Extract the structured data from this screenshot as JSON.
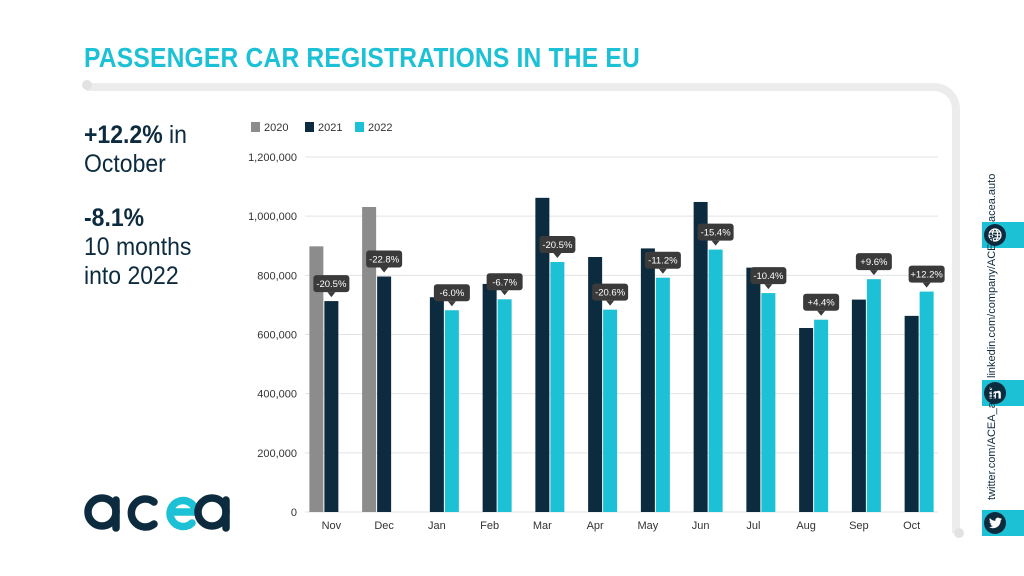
{
  "title": "PASSENGER CAR REGISTRATIONS IN THE EU",
  "kpis": {
    "stat1_value": "+12.2%",
    "stat1_rest": " in",
    "stat1_line2": "October",
    "stat2_value": "-8.1%",
    "stat2_line2": "10 months",
    "stat2_line3": "into 2022"
  },
  "brand": "acea",
  "social": {
    "website": "acea.auto",
    "linkedin": "linkedin.com/company/ACEA/",
    "twitter": "twitter.com/ACEA_auto"
  },
  "colors": {
    "accent": "#1cc1d6",
    "navy": "#0d2b3e",
    "gray2020": "#8c8c8c",
    "label_bg": "#3a3a3a"
  },
  "chart_data": {
    "type": "bar",
    "categories": [
      "Nov",
      "Dec",
      "Jan",
      "Feb",
      "Mar",
      "Apr",
      "May",
      "Jun",
      "Jul",
      "Aug",
      "Sep",
      "Oct"
    ],
    "series": [
      {
        "name": "2020",
        "color": "#8c8c8c",
        "values": [
          898000,
          1031000,
          null,
          null,
          null,
          null,
          null,
          null,
          null,
          null,
          null,
          null
        ]
      },
      {
        "name": "2021",
        "color": "#0d2b3e",
        "values": [
          713000,
          796000,
          726000,
          771000,
          1062000,
          862000,
          891000,
          1048000,
          826000,
          622000,
          718000,
          663000
        ]
      },
      {
        "name": "2022",
        "color": "#1cc1d6",
        "values": [
          null,
          null,
          682000,
          719000,
          845000,
          684000,
          792000,
          887000,
          740000,
          650000,
          787000,
          745000
        ]
      }
    ],
    "change_labels": [
      "-20.5%",
      "-22.8%",
      "-6.0%",
      "-6.7%",
      "-20.5%",
      "-20.6%",
      "-11.2%",
      "-15.4%",
      "-10.4%",
      "+4.4%",
      "+9.6%",
      "+12.2%"
    ],
    "yticks": [
      "1,200,000",
      "1,000,000",
      "800,000",
      "600,000",
      "400,000",
      "200,000",
      "0"
    ],
    "ylim": [
      0,
      1200000
    ],
    "grid": true,
    "legend_position": "top-left"
  }
}
